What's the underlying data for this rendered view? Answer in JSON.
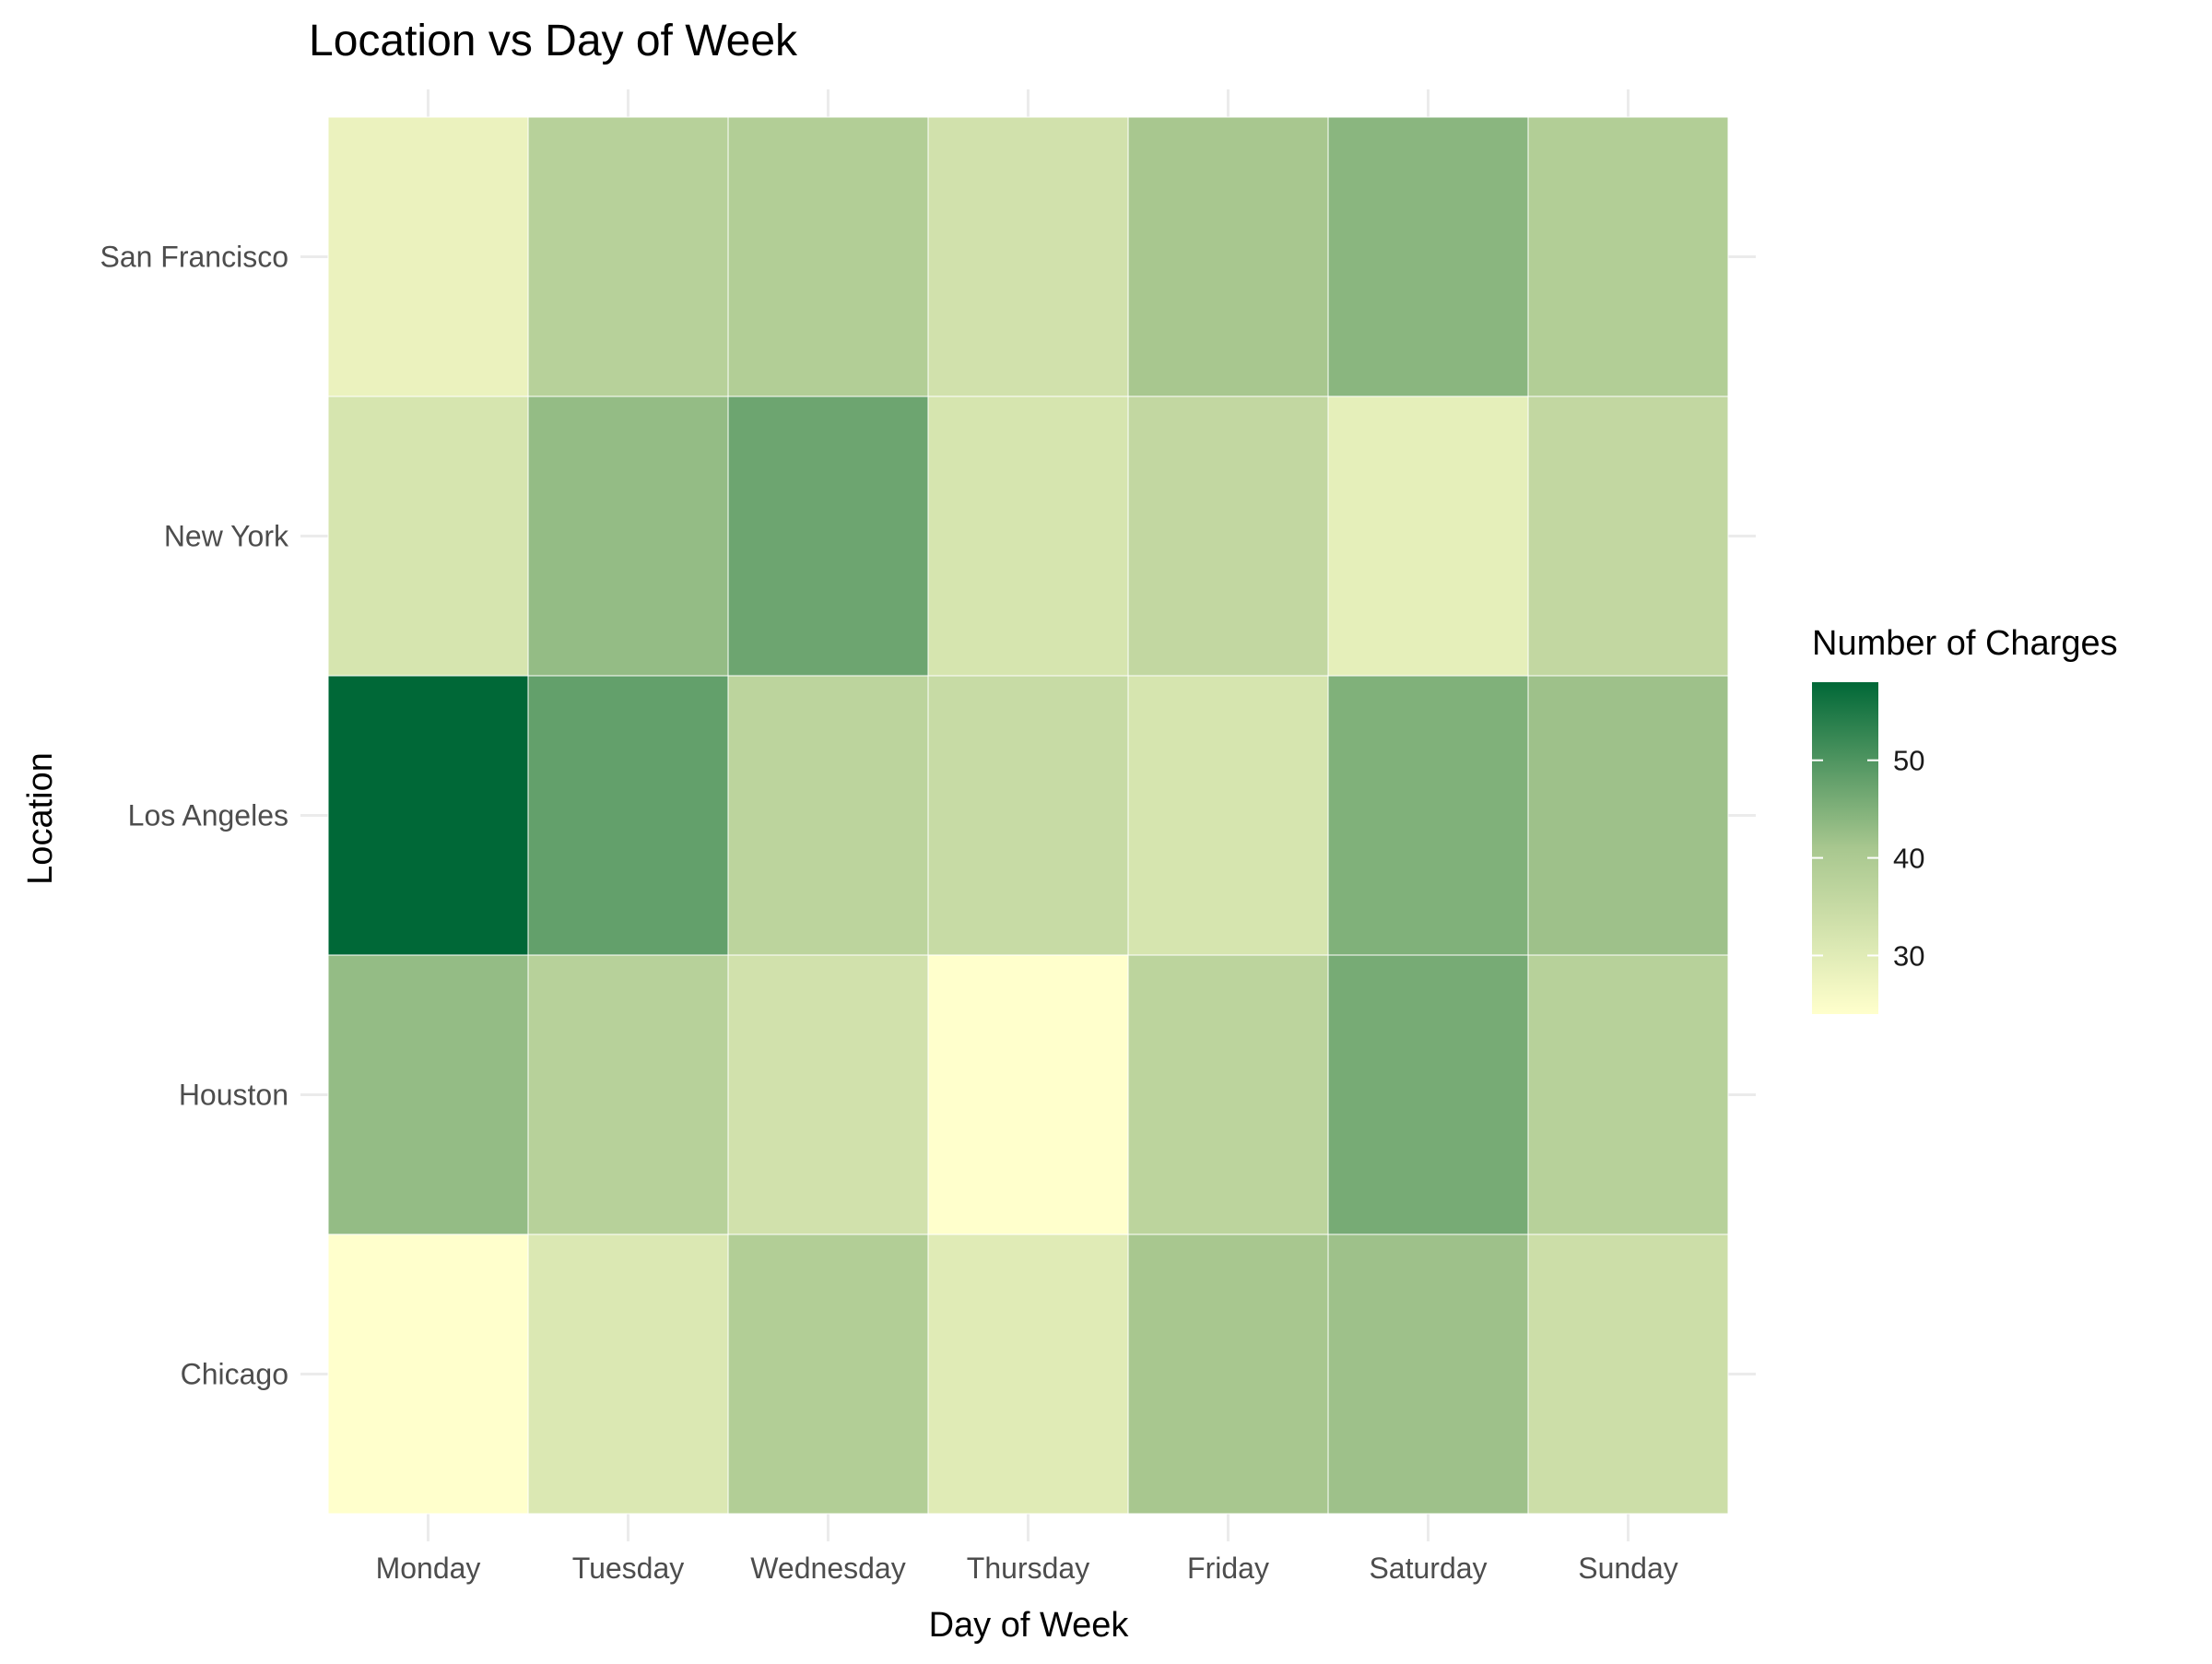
{
  "chart_data": {
    "type": "heatmap",
    "title": "Location vs Day of Week",
    "xlabel": "Day of Week",
    "ylabel": "Location",
    "x": [
      "Monday",
      "Tuesday",
      "Wednesday",
      "Thursday",
      "Friday",
      "Saturday",
      "Sunday"
    ],
    "y": [
      "San Francisco",
      "New York",
      "Los Angeles",
      "Houston",
      "Chicago"
    ],
    "values": [
      [
        28,
        38,
        39,
        33,
        41,
        44,
        39
      ],
      [
        32,
        43,
        47,
        32,
        36,
        29,
        36
      ],
      [
        58,
        48,
        37,
        35,
        32,
        45,
        42
      ],
      [
        43,
        38,
        33,
        24,
        37,
        46,
        38
      ],
      [
        24,
        31,
        39,
        30,
        41,
        42,
        34
      ]
    ],
    "legend": {
      "title": "Number of Charges",
      "ticks": [
        30,
        40,
        50
      ],
      "range": [
        24,
        58
      ],
      "placement": "right"
    },
    "colors": {
      "low": "#ffffcc",
      "mid": "#a8c78f",
      "high": "#006837",
      "grid": "#ebebeb",
      "tick_text": "#4d4d4d"
    },
    "grid": true
  }
}
